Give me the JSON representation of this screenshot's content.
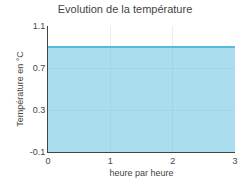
{
  "chart_data": {
    "type": "area",
    "title": "Evolution de la température",
    "xlabel": "heure par heure",
    "ylabel": "Température en °C",
    "x": [
      0,
      3
    ],
    "values": [
      0.9,
      0.9
    ],
    "color": "#55bbdd",
    "xlim": [
      0,
      3
    ],
    "ylim": [
      -0.1,
      1.1
    ],
    "xticks": [
      0,
      1,
      2,
      3
    ],
    "yticks": [
      -0.1,
      0.3,
      0.7,
      1.1
    ],
    "grid": true
  }
}
